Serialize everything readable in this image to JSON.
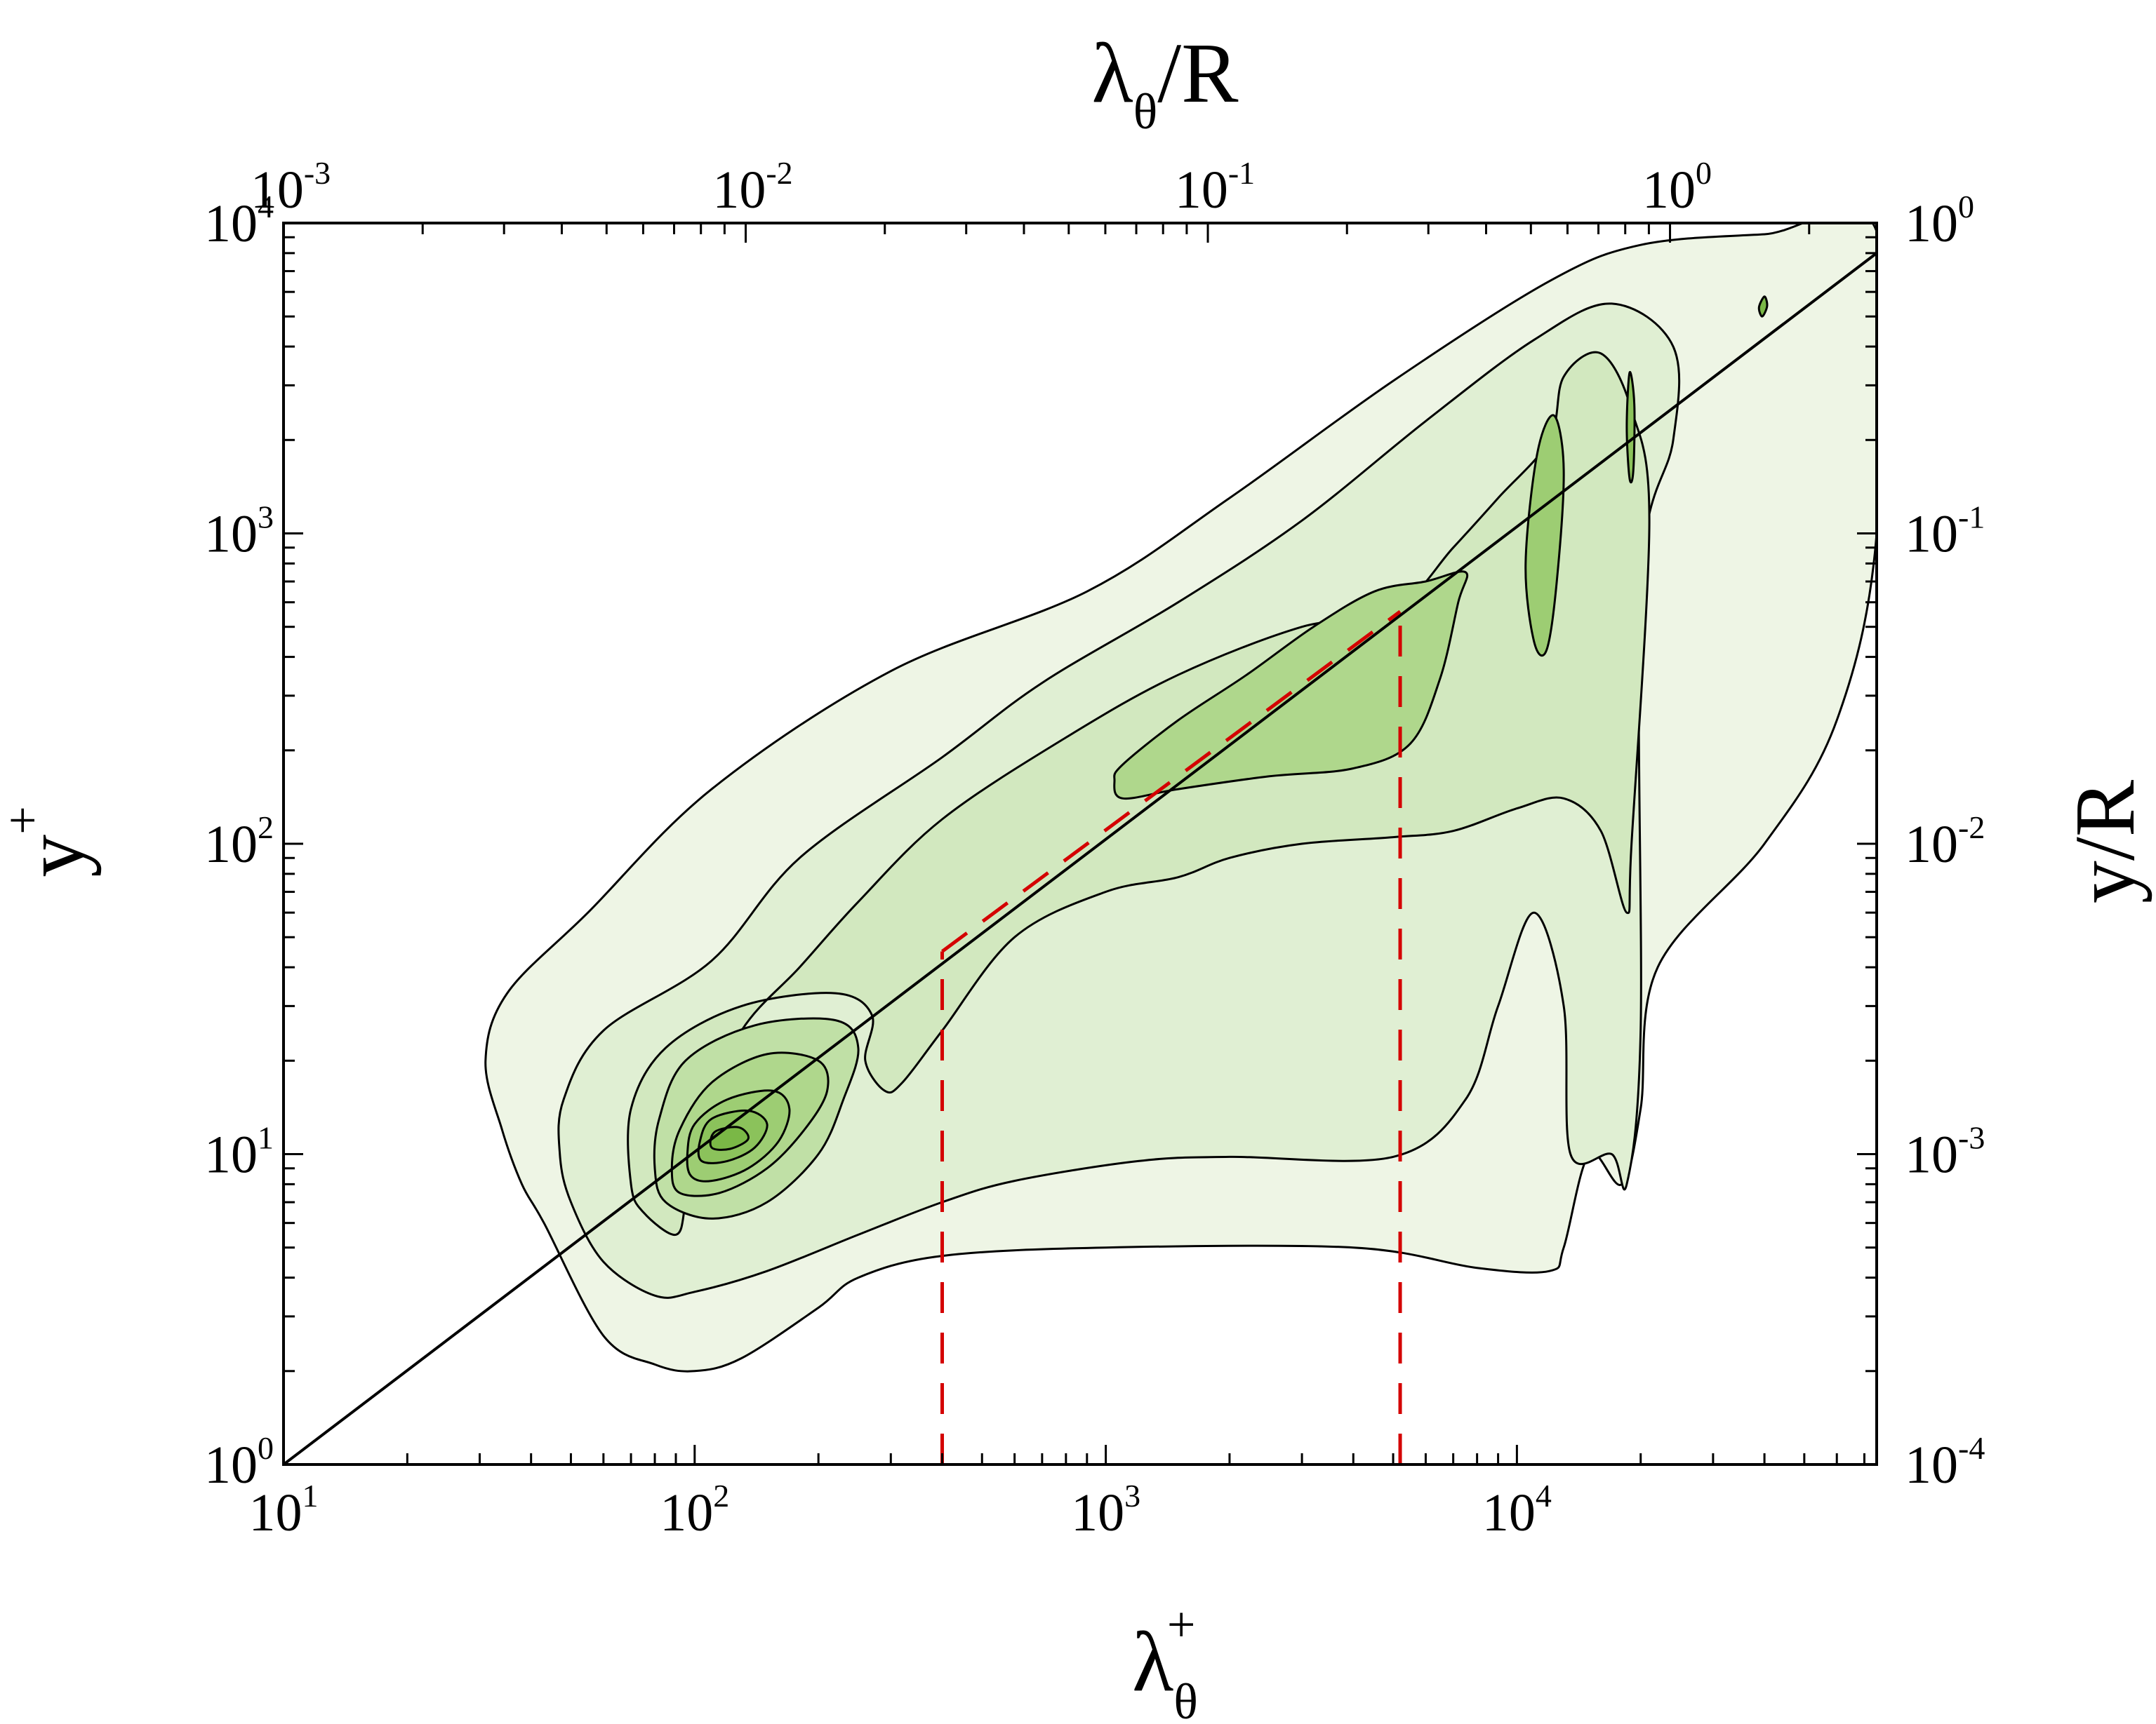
{
  "chart_data": {
    "type": "contour",
    "title": "",
    "xlabel": {
      "main": "λ",
      "sub": "θ",
      "sup": "+"
    },
    "ylabel": {
      "main": "y",
      "sup": "+"
    },
    "top_xlabel": {
      "main": "λ",
      "sub": "θ",
      "tail": "/R"
    },
    "right_ylabel": {
      "main": "y/R"
    },
    "xscale": "log",
    "yscale": "log",
    "xlim": [
      10,
      75000
    ],
    "ylim": [
      1,
      10000
    ],
    "top_xlim": [
      0.001,
      2.8
    ],
    "right_ylim": [
      0.0001,
      1.0
    ],
    "x_ticks": [
      {
        "value": 10,
        "base": "10",
        "exp": "1"
      },
      {
        "value": 100,
        "base": "10",
        "exp": "2"
      },
      {
        "value": 1000,
        "base": "10",
        "exp": "3"
      },
      {
        "value": 10000,
        "base": "10",
        "exp": "4"
      }
    ],
    "y_ticks": [
      {
        "value": 1,
        "base": "10",
        "exp": "0"
      },
      {
        "value": 10,
        "base": "10",
        "exp": "1"
      },
      {
        "value": 100,
        "base": "10",
        "exp": "2"
      },
      {
        "value": 1000,
        "base": "10",
        "exp": "3"
      },
      {
        "value": 10000,
        "base": "10",
        "exp": "4"
      }
    ],
    "top_x_ticks": [
      {
        "value": 0.001,
        "base": "10",
        "exp": "-3"
      },
      {
        "value": 0.01,
        "base": "10",
        "exp": "-2"
      },
      {
        "value": 0.1,
        "base": "10",
        "exp": "-1"
      },
      {
        "value": 1,
        "base": "10",
        "exp": "0"
      }
    ],
    "right_y_ticks": [
      {
        "value": 0.0001,
        "base": "10",
        "exp": "-4"
      },
      {
        "value": 0.001,
        "base": "10",
        "exp": "-3"
      },
      {
        "value": 0.01,
        "base": "10",
        "exp": "-2"
      },
      {
        "value": 0.1,
        "base": "10",
        "exp": "-1"
      },
      {
        "value": 1,
        "base": "10",
        "exp": "0"
      }
    ],
    "colors": {
      "contour_fills": [
        "#eef5e5",
        "#e0efd3",
        "#d2e8bf",
        "#c0e0a6",
        "#afd78c",
        "#9dcd73",
        "#8bc25b",
        "#7ab846",
        "#6aae32",
        "#5fa825"
      ],
      "contour_line": "#000000",
      "diagonal_line": "#000000",
      "dashed_line": "#d40000"
    },
    "diagonal_line": {
      "points": [
        [
          10,
          1
        ],
        [
          75000,
          8000
        ]
      ]
    },
    "dashed_lines": [
      {
        "name": "vertical-left",
        "points": [
          [
            400,
            1
          ],
          [
            400,
            45
          ]
        ]
      },
      {
        "name": "vertical-right",
        "points": [
          [
            5200,
            1
          ],
          [
            5200,
            560
          ]
        ]
      },
      {
        "name": "diagonal-segment",
        "points": [
          [
            400,
            45
          ],
          [
            5200,
            560
          ]
        ]
      }
    ],
    "inner_peak": {
      "x": 120,
      "y": 12
    },
    "outer_peaks": [
      {
        "x": 12000,
        "y": 1300
      },
      {
        "x": 19000,
        "y": 2300
      },
      {
        "x": 40000,
        "y": 5200
      }
    ],
    "contour_levels": [
      {
        "level": 1,
        "outline": [
          [
            43,
            6
          ],
          [
            38,
            8
          ],
          [
            34,
            12
          ],
          [
            31,
            20
          ],
          [
            35,
            33
          ],
          [
            55,
            60
          ],
          [
            110,
            150
          ],
          [
            300,
            360
          ],
          [
            900,
            650
          ],
          [
            2000,
            1300
          ],
          [
            5000,
            3100
          ],
          [
            12000,
            6500
          ],
          [
            20000,
            8500
          ],
          [
            40000,
            9200
          ],
          [
            75000,
            9400
          ],
          [
            75000,
            1000
          ],
          [
            60000,
            250
          ],
          [
            40000,
            100
          ],
          [
            22000,
            40
          ],
          [
            20000,
            14
          ],
          [
            18000,
            8
          ],
          [
            15000,
            10
          ],
          [
            13000,
            5
          ],
          [
            12000,
            4.2
          ],
          [
            8000,
            4.3
          ],
          [
            4000,
            5.0
          ],
          [
            1000,
            5.0
          ],
          [
            400,
            4.7
          ],
          [
            250,
            4.0
          ],
          [
            200,
            3.2
          ],
          [
            130,
            2.2
          ],
          [
            100,
            2.0
          ],
          [
            80,
            2.1
          ],
          [
            60,
            2.6
          ]
        ]
      },
      {
        "level": 2,
        "outline": [
          [
            60,
            4.5
          ],
          [
            50,
            7
          ],
          [
            47,
            10
          ],
          [
            48,
            15
          ],
          [
            60,
            25
          ],
          [
            110,
            42
          ],
          [
            180,
            90
          ],
          [
            400,
            190
          ],
          [
            700,
            330
          ],
          [
            1500,
            600
          ],
          [
            3000,
            1100
          ],
          [
            6000,
            2300
          ],
          [
            11000,
            4200
          ],
          [
            17000,
            5500
          ],
          [
            24000,
            4000
          ],
          [
            24000,
            2000
          ],
          [
            20000,
            700
          ],
          [
            20000,
            25
          ],
          [
            18500,
            8
          ],
          [
            17000,
            10
          ],
          [
            13500,
            10
          ],
          [
            13000,
            30
          ],
          [
            11000,
            60
          ],
          [
            9000,
            30
          ],
          [
            7500,
            15
          ],
          [
            5000,
            9.8
          ],
          [
            2000,
            9.8
          ],
          [
            1200,
            9.5
          ],
          [
            600,
            8.2
          ],
          [
            400,
            7.0
          ],
          [
            250,
            5.5
          ],
          [
            150,
            4.2
          ],
          [
            100,
            3.6
          ],
          [
            80,
            3.5
          ]
        ]
      },
      {
        "level": 3,
        "outline": [
          [
            75,
            6.5
          ],
          [
            70,
            8
          ],
          [
            70,
            14
          ],
          [
            85,
            22
          ],
          [
            130,
            30
          ],
          [
            220,
            33
          ],
          [
            270,
            28
          ],
          [
            260,
            20
          ],
          [
            290,
            16
          ],
          [
            320,
            17
          ],
          [
            400,
            25
          ],
          [
            600,
            50
          ],
          [
            1000,
            70
          ],
          [
            1500,
            78
          ],
          [
            2000,
            90
          ],
          [
            3000,
            100
          ],
          [
            5000,
            105
          ],
          [
            7000,
            110
          ],
          [
            10000,
            130
          ],
          [
            13000,
            140
          ],
          [
            16000,
            110
          ],
          [
            18500,
            60
          ],
          [
            19000,
            100
          ],
          [
            21000,
            1100
          ],
          [
            19000,
            2500
          ],
          [
            16000,
            3800
          ],
          [
            13000,
            3200
          ],
          [
            12000,
            2000
          ],
          [
            9000,
            1300
          ],
          [
            7000,
            900
          ],
          [
            5000,
            560
          ],
          [
            3000,
            500
          ],
          [
            1500,
            350
          ],
          [
            800,
            220
          ],
          [
            400,
            120
          ],
          [
            250,
            65
          ],
          [
            180,
            40
          ],
          [
            130,
            25
          ],
          [
            100,
            12
          ],
          [
            95,
            7
          ],
          [
            90,
            5.5
          ]
        ]
      },
      {
        "level": 4,
        "outline": [
          [
            85,
            7
          ],
          [
            80,
            9
          ],
          [
            82,
            13
          ],
          [
            95,
            20
          ],
          [
            140,
            26
          ],
          [
            220,
            27
          ],
          [
            250,
            22
          ],
          [
            230,
            15
          ],
          [
            200,
            10
          ],
          [
            150,
            7
          ],
          [
            110,
            6.2
          ]
        ]
      },
      {
        "level": 5,
        "outline": [
          [
            1100,
            180
          ],
          [
            1050,
            160
          ],
          [
            1100,
            140
          ],
          [
            1500,
            150
          ],
          [
            2500,
            165
          ],
          [
            4000,
            175
          ],
          [
            5500,
            210
          ],
          [
            6500,
            340
          ],
          [
            7200,
            600
          ],
          [
            7500,
            750
          ],
          [
            6000,
            700
          ],
          [
            4500,
            650
          ],
          [
            3200,
            500
          ],
          [
            2200,
            350
          ],
          [
            1500,
            250
          ]
        ]
      },
      {
        "level": 5,
        "outline": [
          [
            92,
            7.5
          ],
          [
            88,
            9
          ],
          [
            92,
            12
          ],
          [
            110,
            17
          ],
          [
            150,
            21
          ],
          [
            200,
            20
          ],
          [
            210,
            16
          ],
          [
            185,
            12
          ],
          [
            150,
            9
          ],
          [
            115,
            7.5
          ]
        ]
      },
      {
        "level": 6,
        "outline": [
          [
            11000,
            450
          ],
          [
            10500,
            800
          ],
          [
            11200,
            1800
          ],
          [
            12300,
            2400
          ],
          [
            13000,
            1600
          ],
          [
            12500,
            700
          ],
          [
            11800,
            420
          ]
        ]
      },
      {
        "level": 6,
        "outline": [
          [
            98,
            8.5
          ],
          [
            96,
            10
          ],
          [
            100,
            12.5
          ],
          [
            120,
            15
          ],
          [
            155,
            16
          ],
          [
            170,
            14
          ],
          [
            160,
            11
          ],
          [
            135,
            9
          ],
          [
            110,
            8.2
          ]
        ]
      },
      {
        "level": 7,
        "outline": [
          [
            104,
            9.5
          ],
          [
            103,
            11
          ],
          [
            110,
            13
          ],
          [
            135,
            13.8
          ],
          [
            150,
            12.5
          ],
          [
            140,
            10.5
          ],
          [
            120,
            9.5
          ]
        ]
      },
      {
        "level": 7,
        "outline": [
          [
            18800,
            1500
          ],
          [
            18500,
            2200
          ],
          [
            18800,
            3300
          ],
          [
            19300,
            2600
          ],
          [
            19200,
            1600
          ]
        ]
      },
      {
        "level": 8,
        "outline": [
          [
            110,
            10.5
          ],
          [
            112,
            11.8
          ],
          [
            128,
            12.2
          ],
          [
            135,
            11.2
          ],
          [
            122,
            10.4
          ]
        ]
      },
      {
        "level": 8,
        "outline": [
          [
            39500,
            5000
          ],
          [
            38800,
            5350
          ],
          [
            40000,
            5800
          ],
          [
            40600,
            5400
          ]
        ]
      }
    ]
  }
}
